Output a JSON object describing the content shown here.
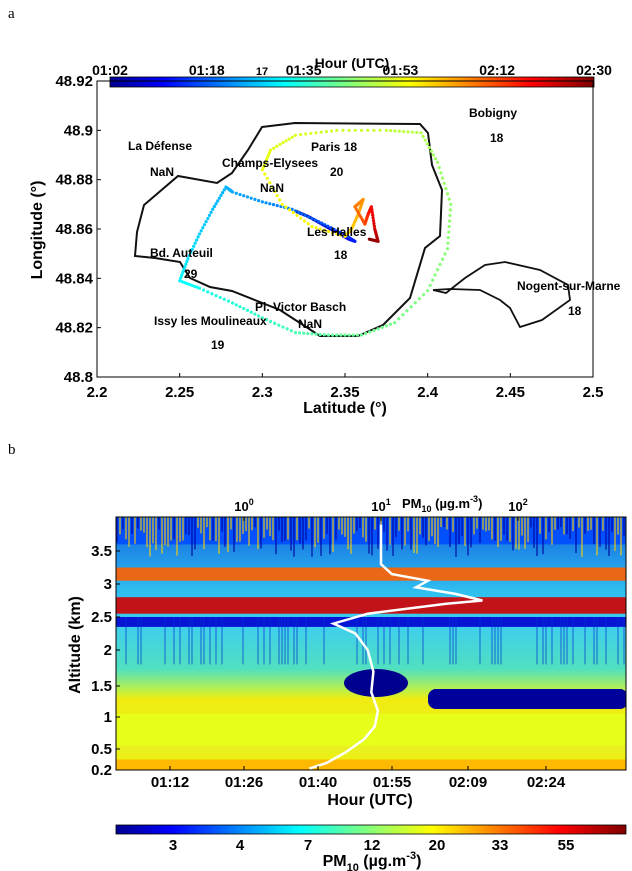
{
  "panels": {
    "a": "a",
    "b": "b"
  },
  "chart_data": [
    {
      "type": "scatter",
      "panel": "a",
      "xlabel": "Latitude (°)",
      "ylabel": "Longitude (°)",
      "xlim": [
        2.2,
        2.5
      ],
      "ylim": [
        48.8,
        48.92
      ],
      "xticks": [
        "2.2",
        "2.25",
        "2.3",
        "2.35",
        "2.4",
        "2.45",
        "2.5"
      ],
      "yticks": [
        "48.8",
        "48.82",
        "48.84",
        "48.86",
        "48.88",
        "48.9",
        "48.92"
      ],
      "colorbar": {
        "title": "Hour (UTC)",
        "ticks": [
          "01:02",
          "01:18",
          "01:35",
          "01:53",
          "02:12",
          "02:30"
        ],
        "stray_label": "17"
      },
      "stations": [
        {
          "name": "La Défense",
          "value": "NaN"
        },
        {
          "name": "Champs-Elysees",
          "value": "NaN"
        },
        {
          "name": "Paris 18",
          "value": "20"
        },
        {
          "name": "Bobigny",
          "value": "18"
        },
        {
          "name": "Les Halles",
          "value": "18"
        },
        {
          "name": "Bd. Auteuil",
          "value": "29"
        },
        {
          "name": "Nogent-sur-Marne",
          "value": "18"
        },
        {
          "name": "Pl. Victor Basch",
          "value": "NaN"
        },
        {
          "name": "Issy les Moulineaux",
          "value": "19"
        }
      ],
      "track": [
        {
          "x": 2.321,
          "y": 48.867,
          "c": 0.0
        },
        {
          "x": 2.328,
          "y": 48.865,
          "c": 0.03
        },
        {
          "x": 2.336,
          "y": 48.862,
          "c": 0.06
        },
        {
          "x": 2.344,
          "y": 48.859,
          "c": 0.09
        },
        {
          "x": 2.352,
          "y": 48.856,
          "c": 0.12
        },
        {
          "x": 2.356,
          "y": 48.855,
          "c": 0.15
        },
        {
          "x": 2.349,
          "y": 48.858,
          "c": 0.18
        },
        {
          "x": 2.334,
          "y": 48.863,
          "c": 0.21
        },
        {
          "x": 2.318,
          "y": 48.868,
          "c": 0.24
        },
        {
          "x": 2.3,
          "y": 48.871,
          "c": 0.27
        },
        {
          "x": 2.282,
          "y": 48.875,
          "c": 0.29
        },
        {
          "x": 2.278,
          "y": 48.877,
          "c": 0.3
        },
        {
          "x": 2.27,
          "y": 48.868,
          "c": 0.31
        },
        {
          "x": 2.262,
          "y": 48.858,
          "c": 0.33
        },
        {
          "x": 2.255,
          "y": 48.848,
          "c": 0.35
        },
        {
          "x": 2.25,
          "y": 48.839,
          "c": 0.37
        },
        {
          "x": 2.262,
          "y": 48.836,
          "c": 0.39
        },
        {
          "x": 2.282,
          "y": 48.83,
          "c": 0.41
        },
        {
          "x": 2.3,
          "y": 48.824,
          "c": 0.43
        },
        {
          "x": 2.32,
          "y": 48.818,
          "c": 0.45
        },
        {
          "x": 2.34,
          "y": 48.817,
          "c": 0.47
        },
        {
          "x": 2.36,
          "y": 48.817,
          "c": 0.48
        },
        {
          "x": 2.38,
          "y": 48.822,
          "c": 0.49
        },
        {
          "x": 2.4,
          "y": 48.835,
          "c": 0.5
        },
        {
          "x": 2.412,
          "y": 48.852,
          "c": 0.51
        },
        {
          "x": 2.414,
          "y": 48.87,
          "c": 0.52
        },
        {
          "x": 2.406,
          "y": 48.887,
          "c": 0.53
        },
        {
          "x": 2.396,
          "y": 48.899,
          "c": 0.55
        },
        {
          "x": 2.375,
          "y": 48.9,
          "c": 0.57
        },
        {
          "x": 2.345,
          "y": 48.9,
          "c": 0.58
        },
        {
          "x": 2.32,
          "y": 48.898,
          "c": 0.59
        },
        {
          "x": 2.305,
          "y": 48.892,
          "c": 0.6
        },
        {
          "x": 2.3,
          "y": 48.884,
          "c": 0.61
        },
        {
          "x": 2.312,
          "y": 48.87,
          "c": 0.62
        },
        {
          "x": 2.33,
          "y": 48.861,
          "c": 0.63
        },
        {
          "x": 2.35,
          "y": 48.857,
          "c": 0.65
        },
        {
          "x": 2.354,
          "y": 48.86,
          "c": 0.67
        },
        {
          "x": 2.358,
          "y": 48.866,
          "c": 0.7
        },
        {
          "x": 2.361,
          "y": 48.872,
          "c": 0.73
        },
        {
          "x": 2.356,
          "y": 48.869,
          "c": 0.76
        },
        {
          "x": 2.362,
          "y": 48.862,
          "c": 0.8
        },
        {
          "x": 2.364,
          "y": 48.866,
          "c": 0.84
        },
        {
          "x": 2.366,
          "y": 48.869,
          "c": 0.88
        },
        {
          "x": 2.368,
          "y": 48.86,
          "c": 0.92
        },
        {
          "x": 2.37,
          "y": 48.855,
          "c": 0.96
        },
        {
          "x": 2.364,
          "y": 48.856,
          "c": 1.0
        }
      ]
    },
    {
      "type": "heatmap",
      "panel": "b",
      "xlabel": "Hour (UTC)",
      "ylabel": "Altitude (km)",
      "xticks": [
        "01:12",
        "01:26",
        "01:40",
        "01:55",
        "02:09",
        "02:24"
      ],
      "yticks": [
        "0.2",
        "0.5",
        "1",
        "1.5",
        "2",
        "2.5",
        "3",
        "3.5"
      ],
      "ylim": [
        0.2,
        4.0
      ],
      "top_axis_label": "PM10 (µg.m-3)",
      "top_axis_label_parts": {
        "base": "PM",
        "sub": "10",
        "rest": " (µg.m",
        "sup": "-3",
        "end": ")"
      },
      "top_axis_ticks": [
        {
          "base": "10",
          "exp": "0",
          "value": 1
        },
        {
          "base": "10",
          "exp": "1",
          "value": 10
        },
        {
          "base": "10",
          "exp": "2",
          "value": 100
        }
      ],
      "colorbar": {
        "ticks": [
          "3",
          "4",
          "7",
          "12",
          "20",
          "33",
          "55"
        ],
        "label_parts": {
          "base": "PM",
          "sub": "10",
          "rest": " (µg.m",
          "sup": "-3",
          "end": ")"
        }
      },
      "layers": [
        {
          "name": "aerosol-top",
          "alt_from": 3.6,
          "alt_to": 4.0,
          "level": 0.2
        },
        {
          "name": "upper-band",
          "alt_from": 3.05,
          "alt_to": 3.25,
          "level": 0.78
        },
        {
          "name": "main-peak",
          "alt_from": 2.55,
          "alt_to": 2.8,
          "level": 0.92
        },
        {
          "name": "clear-gap",
          "alt_from": 2.35,
          "alt_to": 2.5,
          "level": 0.08
        },
        {
          "name": "boundary-layer",
          "alt_from": 0.55,
          "alt_to": 1.05,
          "level": 0.6
        },
        {
          "name": "surface",
          "alt_from": 0.2,
          "alt_to": 0.35,
          "level": 0.7
        }
      ],
      "profile_pm10": [
        {
          "pm": 3.0,
          "alt": 0.22
        },
        {
          "pm": 4.0,
          "alt": 0.3
        },
        {
          "pm": 5.5,
          "alt": 0.45
        },
        {
          "pm": 7.5,
          "alt": 0.65
        },
        {
          "pm": 9.0,
          "alt": 0.85
        },
        {
          "pm": 9.5,
          "alt": 1.1
        },
        {
          "pm": 8.5,
          "alt": 1.4
        },
        {
          "pm": 8.8,
          "alt": 1.7
        },
        {
          "pm": 8.0,
          "alt": 2.0
        },
        {
          "pm": 6.5,
          "alt": 2.25
        },
        {
          "pm": 4.5,
          "alt": 2.4
        },
        {
          "pm": 8.0,
          "alt": 2.55
        },
        {
          "pm": 30.0,
          "alt": 2.7
        },
        {
          "pm": 55.0,
          "alt": 2.75
        },
        {
          "pm": 35.0,
          "alt": 2.85
        },
        {
          "pm": 18.0,
          "alt": 2.95
        },
        {
          "pm": 22.0,
          "alt": 3.05
        },
        {
          "pm": 12.0,
          "alt": 3.15
        },
        {
          "pm": 10.0,
          "alt": 3.3
        },
        {
          "pm": 10.0,
          "alt": 3.5
        },
        {
          "pm": 10.0,
          "alt": 3.7
        },
        {
          "pm": 10.0,
          "alt": 3.9
        }
      ]
    }
  ]
}
